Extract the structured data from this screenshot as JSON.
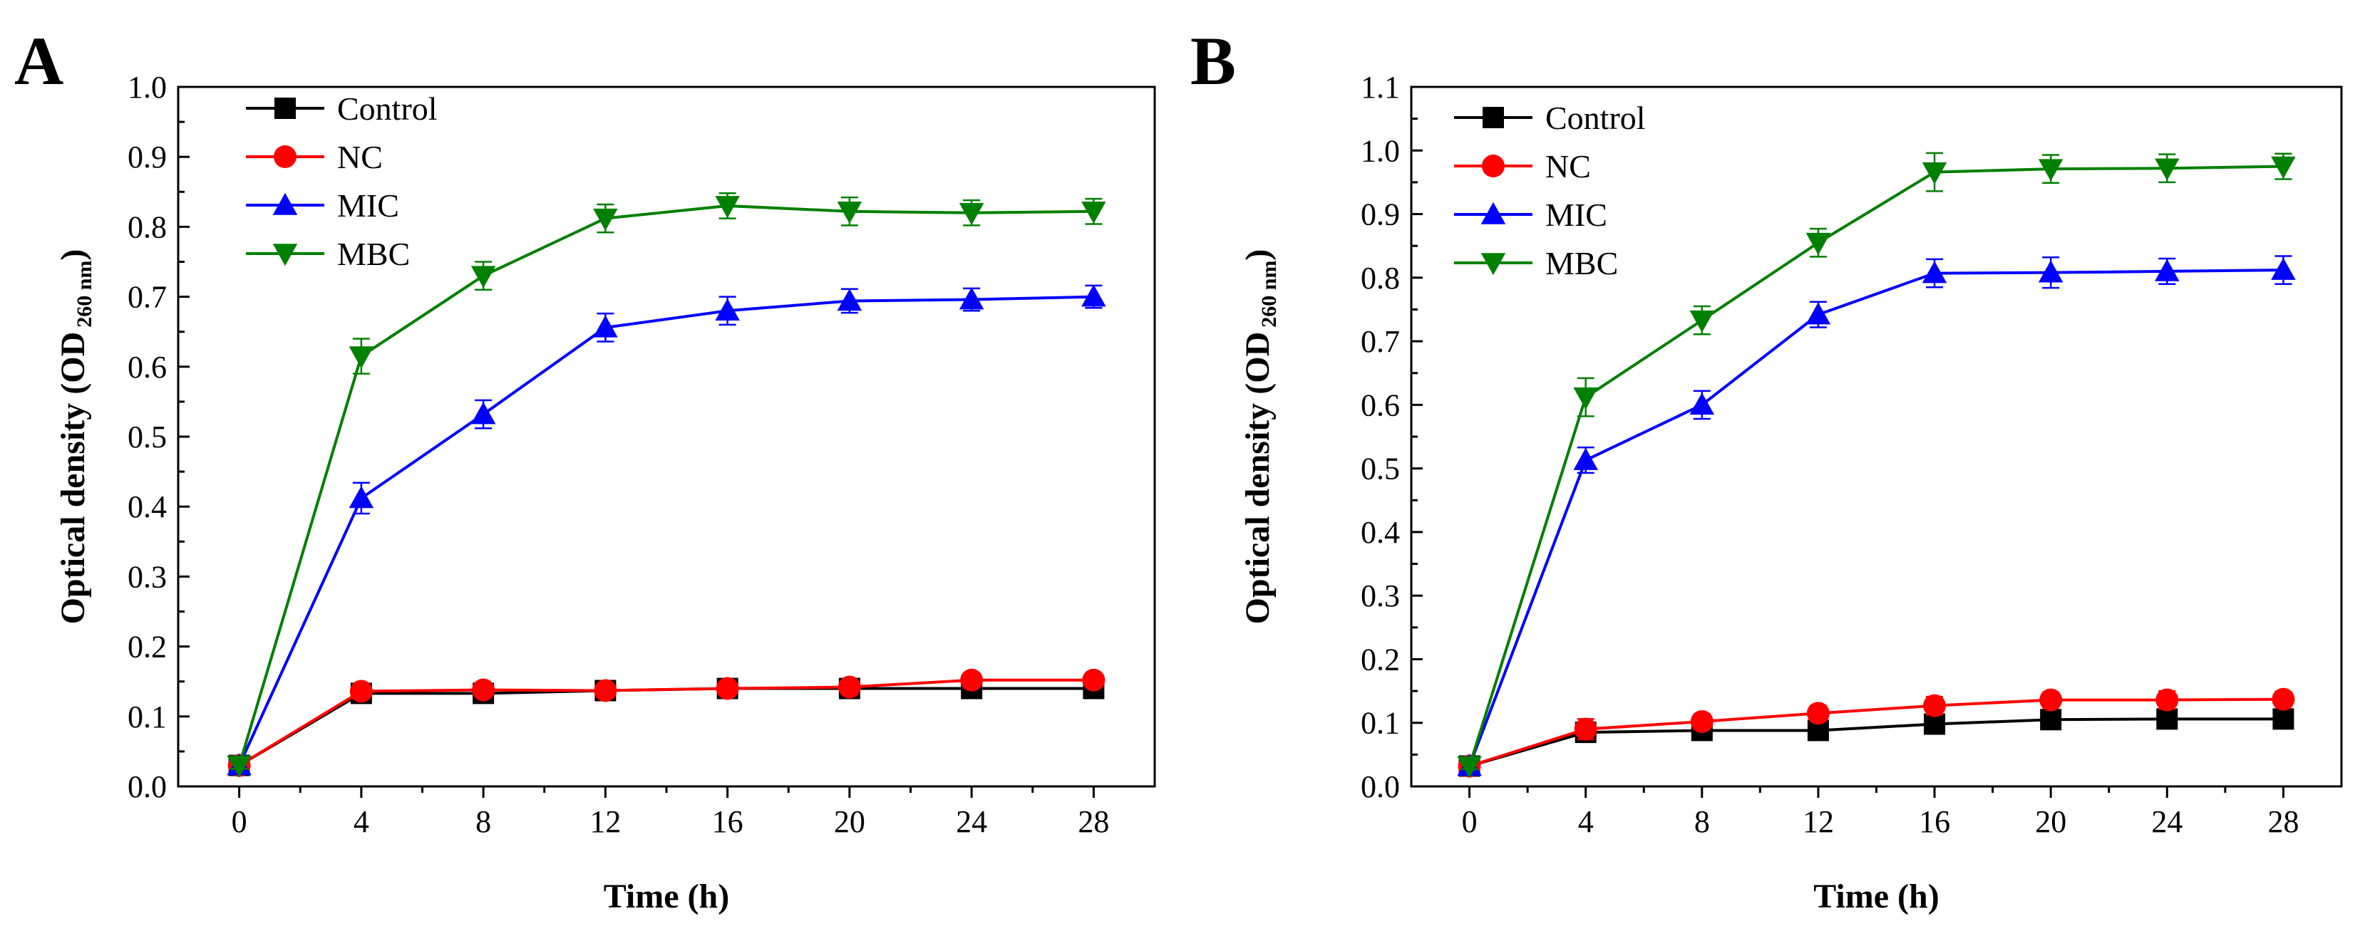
{
  "chart_data": [
    {
      "panel": "A",
      "type": "line",
      "xlabel": "Time (h)",
      "ylabel": {
        "main": "Optical density (OD",
        "sub": "260 nm",
        "close": ")"
      },
      "x": [
        0,
        4,
        8,
        12,
        16,
        20,
        24,
        28
      ],
      "xlim": [
        -2,
        30
      ],
      "ylim": [
        0.0,
        1.0
      ],
      "xticks": [
        "0",
        "4",
        "8",
        "12",
        "16",
        "20",
        "24",
        "28"
      ],
      "yticks": [
        "0.0",
        "0.1",
        "0.2",
        "0.3",
        "0.4",
        "0.5",
        "0.6",
        "0.7",
        "0.8",
        "0.9",
        "1.0"
      ],
      "legend_position": "top-left",
      "series": [
        {
          "name": "Control",
          "color": "#000000",
          "marker": "square",
          "values": [
            0.03,
            0.133,
            0.133,
            0.137,
            0.14,
            0.14,
            0.14,
            0.14
          ],
          "errors": [
            0.005,
            0.006,
            0.006,
            0.005,
            0.005,
            0.005,
            0.006,
            0.006
          ]
        },
        {
          "name": "NC",
          "color": "#ff0000",
          "marker": "circle",
          "values": [
            0.03,
            0.136,
            0.138,
            0.137,
            0.14,
            0.142,
            0.152,
            0.152
          ],
          "errors": [
            0.005,
            0.006,
            0.006,
            0.005,
            0.005,
            0.006,
            0.006,
            0.006
          ]
        },
        {
          "name": "MIC",
          "color": "#0000ff",
          "marker": "triangle-up",
          "values": [
            0.03,
            0.412,
            0.532,
            0.656,
            0.68,
            0.694,
            0.696,
            0.7
          ],
          "errors": [
            0.005,
            0.022,
            0.02,
            0.02,
            0.02,
            0.017,
            0.016,
            0.016
          ]
        },
        {
          "name": "MBC",
          "color": "#008000",
          "marker": "triangle-down",
          "values": [
            0.03,
            0.615,
            0.73,
            0.812,
            0.83,
            0.822,
            0.82,
            0.822
          ],
          "errors": [
            0.005,
            0.025,
            0.02,
            0.02,
            0.018,
            0.02,
            0.018,
            0.018
          ]
        }
      ]
    },
    {
      "panel": "B",
      "type": "line",
      "xlabel": "Time (h)",
      "ylabel": {
        "main": "Optical density (OD",
        "sub": "260 nm",
        "close": ")"
      },
      "x": [
        0,
        4,
        8,
        12,
        16,
        20,
        24,
        28
      ],
      "xlim": [
        -2,
        30
      ],
      "ylim": [
        0.0,
        1.1
      ],
      "xticks": [
        "0",
        "4",
        "8",
        "12",
        "16",
        "20",
        "24",
        "28"
      ],
      "yticks": [
        "0.0",
        "0.1",
        "0.2",
        "0.3",
        "0.4",
        "0.5",
        "0.6",
        "0.7",
        "0.8",
        "0.9",
        "1.0",
        "1.1"
      ],
      "legend_position": "top-left",
      "series": [
        {
          "name": "Control",
          "color": "#000000",
          "marker": "square",
          "values": [
            0.032,
            0.085,
            0.088,
            0.088,
            0.098,
            0.105,
            0.106,
            0.106
          ],
          "errors": [
            0.005,
            0.012,
            0.01,
            0.015,
            0.01,
            0.01,
            0.01,
            0.01
          ]
        },
        {
          "name": "NC",
          "color": "#ff0000",
          "marker": "circle",
          "values": [
            0.032,
            0.09,
            0.102,
            0.115,
            0.127,
            0.136,
            0.136,
            0.137
          ],
          "errors": [
            0.005,
            0.016,
            0.012,
            0.012,
            0.014,
            0.012,
            0.014,
            0.012
          ]
        },
        {
          "name": "MIC",
          "color": "#0000ff",
          "marker": "triangle-up",
          "values": [
            0.032,
            0.513,
            0.6,
            0.742,
            0.807,
            0.808,
            0.81,
            0.812
          ],
          "errors": [
            0.005,
            0.02,
            0.022,
            0.02,
            0.022,
            0.024,
            0.02,
            0.022
          ]
        },
        {
          "name": "MBC",
          "color": "#008000",
          "marker": "triangle-down",
          "values": [
            0.032,
            0.612,
            0.733,
            0.855,
            0.966,
            0.971,
            0.972,
            0.975
          ],
          "errors": [
            0.005,
            0.03,
            0.022,
            0.022,
            0.03,
            0.022,
            0.022,
            0.02
          ]
        }
      ]
    }
  ]
}
